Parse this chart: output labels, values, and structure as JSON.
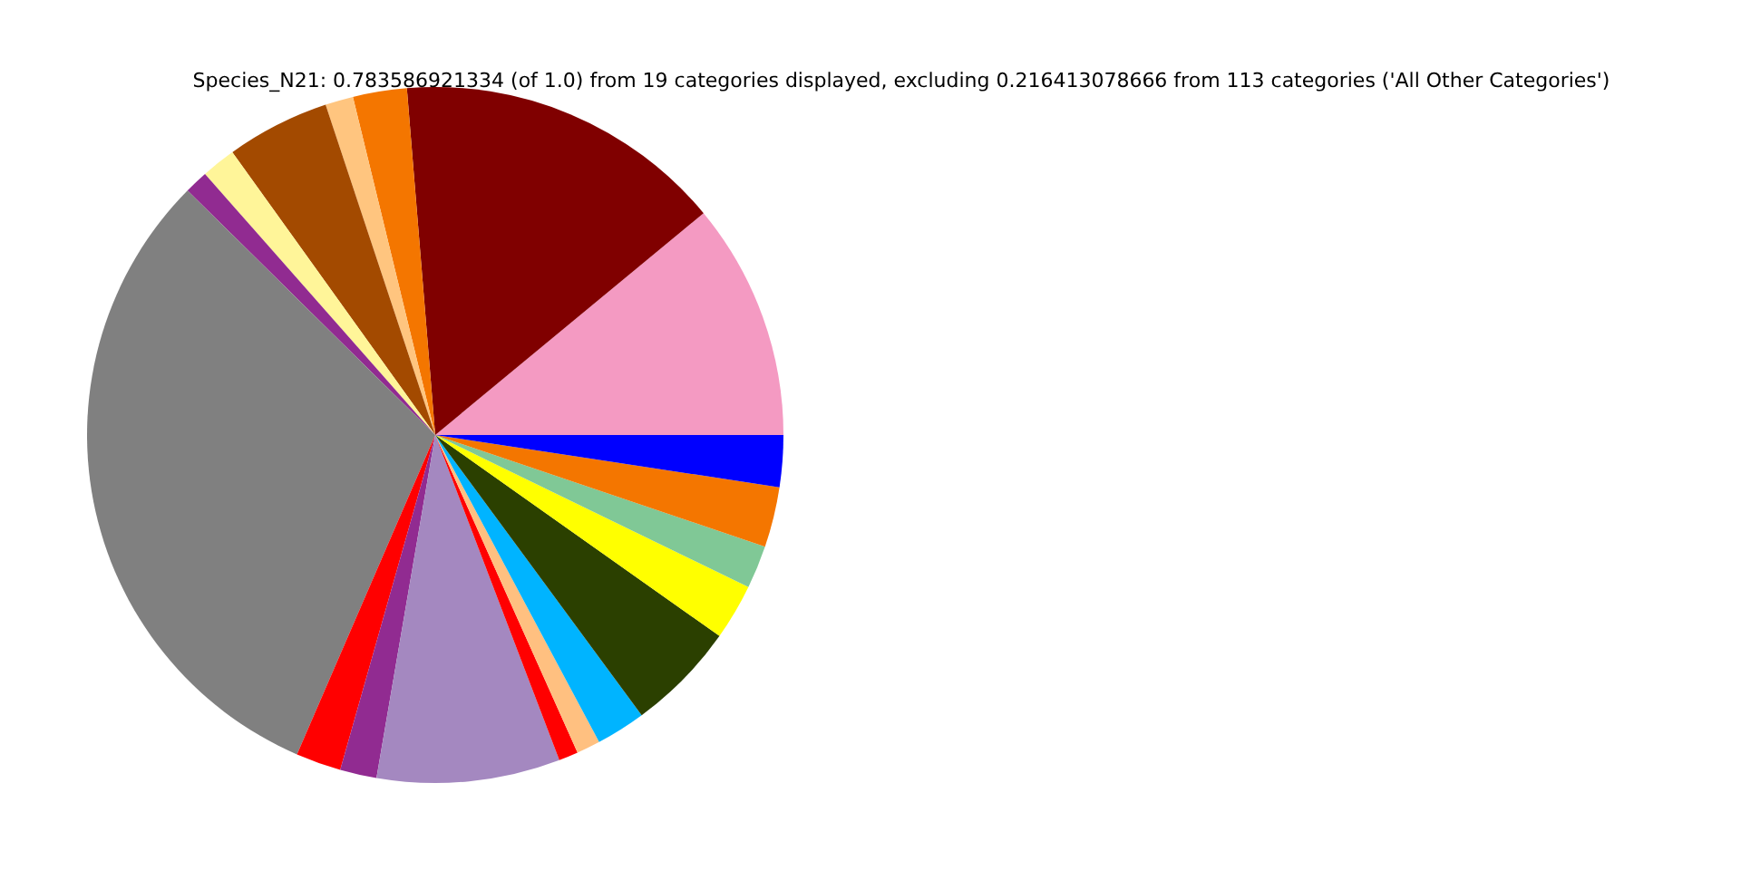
{
  "chart_data": {
    "type": "pie",
    "title": "Species_N21: 0.783586921334 (of 1.0) from 19 categories displayed, excluding 0.216413078666 from 113 categories ('All Other Categories')",
    "categories": [
      null,
      null,
      null,
      null,
      null,
      null,
      null,
      null,
      null,
      null,
      null,
      null,
      null,
      null,
      null,
      null,
      null,
      null,
      null
    ],
    "values": [
      11.0,
      15.3,
      2.5,
      1.3,
      4.8,
      1.6,
      1.1,
      30.9,
      2.1,
      1.7,
      8.5,
      0.9,
      1.1,
      2.3,
      5.1,
      2.6,
      2.0,
      2.8,
      2.4
    ],
    "colors": [
      "#f49ac2",
      "#800000",
      "#f47600",
      "#ffc57f",
      "#a34a00",
      "#fff599",
      "#912b91",
      "#808080",
      "#ff0000",
      "#912b91",
      "#a488c0",
      "#ff0000",
      "#ffc080",
      "#00b4ff",
      "#2b4000",
      "#ffff00",
      "#80c896",
      "#f47600",
      "#0000ff"
    ]
  }
}
